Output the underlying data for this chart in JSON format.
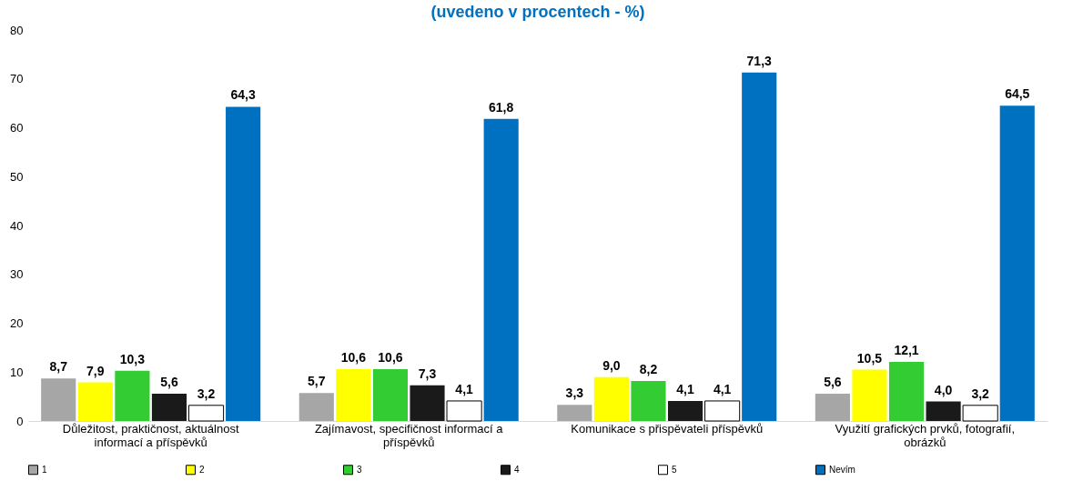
{
  "chart_data": {
    "type": "bar",
    "title": "(uvedeno v procentech - %)",
    "categories": [
      "Důležitost, praktičnost, aktuálnost informací a příspěvků",
      "Zajímavost, specifičnost informací a příspěvků",
      "Komunikace s přispěvateli příspěvků",
      "Využití grafických prvků, fotografií, obrázků"
    ],
    "series": [
      {
        "name": "1",
        "color": "#a6a6a6",
        "values": [
          8.7,
          5.7,
          3.3,
          5.6
        ],
        "value_labels": [
          "8,7",
          "5,7",
          "3,3",
          "5,6"
        ]
      },
      {
        "name": "2",
        "color": "#ffff00",
        "values": [
          7.9,
          10.6,
          9.0,
          10.5
        ],
        "value_labels": [
          "7,9",
          "10,6",
          "9,0",
          "10,5"
        ]
      },
      {
        "name": "3",
        "color": "#33cc33",
        "values": [
          10.3,
          10.6,
          8.2,
          12.1
        ],
        "value_labels": [
          "10,3",
          "10,6",
          "8,2",
          "12,1"
        ]
      },
      {
        "name": "4",
        "color": "#1a1a1a",
        "values": [
          5.6,
          7.3,
          4.1,
          4.0
        ],
        "value_labels": [
          "5,6",
          "7,3",
          "4,1",
          "4,0"
        ]
      },
      {
        "name": "5",
        "color": "#ffffff",
        "values": [
          3.2,
          4.1,
          4.1,
          3.2
        ],
        "value_labels": [
          "3,2",
          "4,1",
          "4,1",
          "3,2"
        ]
      },
      {
        "name": "Nevím",
        "color": "#0070c0",
        "values": [
          64.3,
          61.8,
          71.3,
          64.5
        ],
        "value_labels": [
          "64,3",
          "61,8",
          "71,3",
          "64,5"
        ]
      }
    ],
    "ylim": [
      0,
      80
    ],
    "yticks": [
      0,
      10,
      20,
      30,
      40,
      50,
      60,
      70,
      80
    ],
    "legend": "bottom"
  }
}
